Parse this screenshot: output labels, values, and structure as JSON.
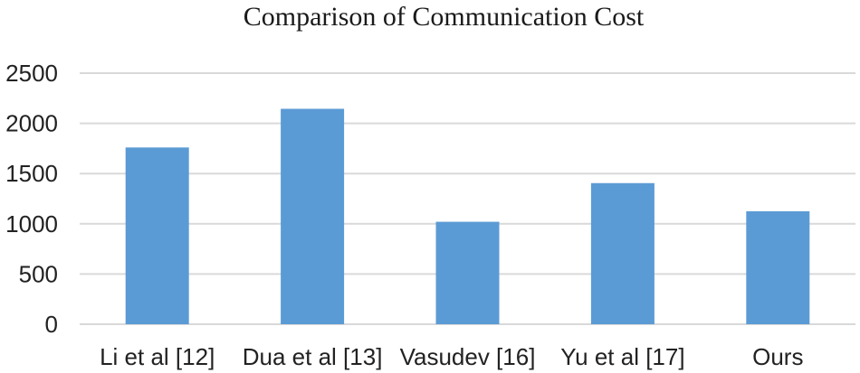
{
  "chart_data": {
    "type": "bar",
    "title": "Comparison of Communication Cost",
    "xlabel": "",
    "ylabel": "",
    "categories": [
      "Li et al [12]",
      "Dua et al [13]",
      "Vasudev [16]",
      "Yu et al [17]",
      "Ours"
    ],
    "values": [
      1760,
      2145,
      1020,
      1405,
      1125
    ],
    "ylim": [
      0,
      2500
    ],
    "yticks": [
      "0",
      "500",
      "1000",
      "1500",
      "2000",
      "2500"
    ],
    "grid": true,
    "legend": "none",
    "bar_color": "#5b9bd5"
  }
}
